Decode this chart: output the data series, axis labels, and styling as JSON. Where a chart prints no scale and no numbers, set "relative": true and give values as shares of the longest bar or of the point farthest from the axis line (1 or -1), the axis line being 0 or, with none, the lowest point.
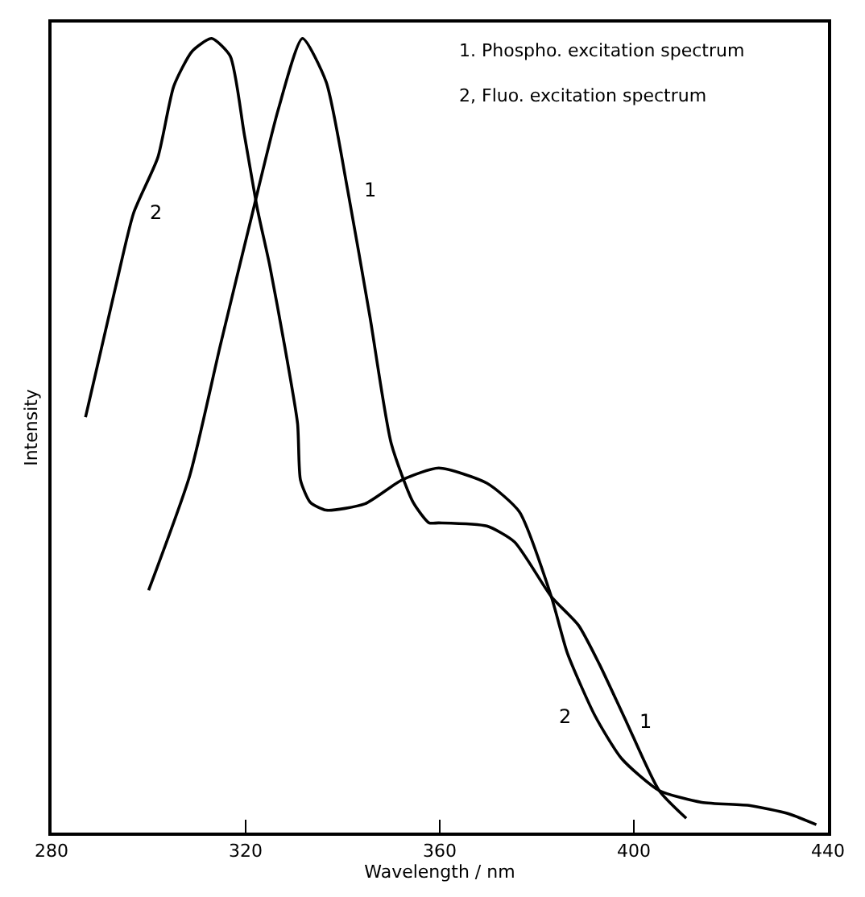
{
  "chart_data": {
    "type": "line",
    "relative": true,
    "xlabel": "Wavelength / nm",
    "ylabel": "Intensity",
    "xlim": [
      280,
      440
    ],
    "xticks": [
      280,
      320,
      360,
      400,
      440
    ],
    "legend": false,
    "marker": "none",
    "line_style": "solid",
    "series": [
      {
        "name": "1",
        "color": "#000000",
        "x": [
          300,
          308.5,
          314.8,
          321.4,
          326.7,
          331.7,
          336.6,
          341,
          345.6,
          350,
          354.5,
          357.8,
          359.8,
          369.7,
          375.4,
          383,
          388.6,
          392.9,
          398.5,
          405.2,
          410.8
        ],
        "values": [
          0.305,
          0.45,
          0.614,
          0.78,
          0.91,
          1.0,
          0.945,
          0.81,
          0.65,
          0.49,
          0.416,
          0.39,
          0.39,
          0.386,
          0.366,
          0.297,
          0.261,
          0.212,
          0.139,
          0.053,
          0.018
        ]
      },
      {
        "name": "2",
        "color": "#000000",
        "x": [
          287,
          293.2,
          296.9,
          301.9,
          305.2,
          309,
          313,
          316.8,
          319.7,
          322.4,
          325,
          328,
          330.7,
          331.3,
          333.3,
          336.6,
          344.6,
          352.2,
          359.8,
          369.7,
          376.4,
          383,
          386.3,
          392,
          397.5,
          405.2,
          414,
          424,
          431.7,
          437.6
        ],
        "values": [
          0.523,
          0.687,
          0.78,
          0.85,
          0.94,
          0.984,
          1.0,
          0.978,
          0.88,
          0.786,
          0.713,
          0.614,
          0.515,
          0.444,
          0.416,
          0.406,
          0.414,
          0.444,
          0.459,
          0.44,
          0.404,
          0.297,
          0.226,
          0.147,
          0.093,
          0.053,
          0.038,
          0.034,
          0.024,
          0.01
        ]
      }
    ],
    "annotations": [
      "1. Phospho. excitation spectrum",
      "2, Fluo. excitation spectrum"
    ]
  }
}
